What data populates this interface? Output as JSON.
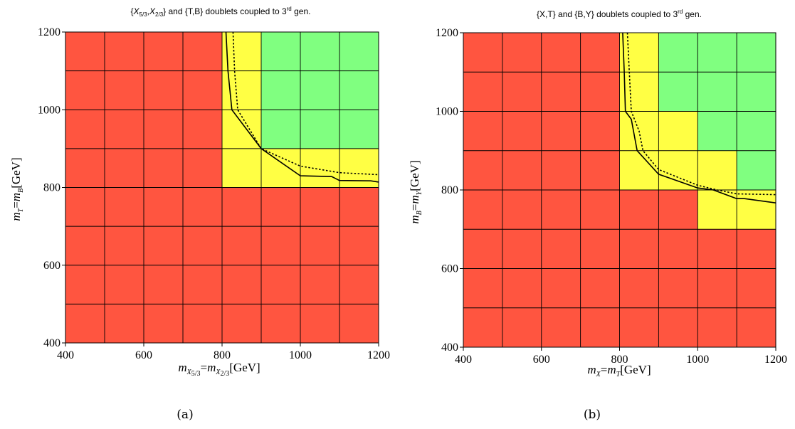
{
  "chart_data": [
    {
      "type": "heatmap",
      "panel": "a",
      "caption": "(a)",
      "title": "{X5/3,X2/3} and {T,B} doublets coupled to 3rd gen.",
      "title_parts": {
        "t1": "{",
        "t2": "X",
        "t3": "5/3",
        "t4": ",",
        "t5": "X",
        "t6": "2/3",
        "t7": "} and {T,B} doublets coupled to 3",
        "t8": "rd",
        "t9": " gen."
      },
      "xlabel": "mX5/3=mX2/3[GeV]",
      "xlabel_parts": {
        "m1": "m",
        "s1": "X",
        "ss1": "5/3",
        "eq": "=",
        "m2": "m",
        "s2": "X",
        "ss2": "2/3",
        "unit": "[GeV]"
      },
      "ylabel": "mT=mB[GeV]",
      "ylabel_parts": {
        "m1": "m",
        "s1": "T",
        "eq": "=",
        "m2": "m",
        "s2": "B",
        "unit": "[GeV]"
      },
      "xlim": [
        400,
        1200
      ],
      "ylim": [
        400,
        1200
      ],
      "xticks": [
        400,
        600,
        800,
        1000,
        1200
      ],
      "yticks": [
        400,
        600,
        800,
        1000,
        1200
      ],
      "x_edges": [
        400,
        500,
        600,
        700,
        800,
        900,
        1000,
        1100,
        1200
      ],
      "y_edges": [
        400,
        500,
        600,
        700,
        800,
        900,
        1000,
        1100,
        1200
      ],
      "colors": {
        "red": "#ff5540",
        "yellow": "#ffff44",
        "green": "#80ff80"
      },
      "cells": [
        [
          "red",
          "red",
          "red",
          "red",
          "red",
          "red",
          "red",
          "red"
        ],
        [
          "red",
          "red",
          "red",
          "red",
          "red",
          "red",
          "red",
          "red"
        ],
        [
          "red",
          "red",
          "red",
          "red",
          "red",
          "red",
          "red",
          "red"
        ],
        [
          "red",
          "red",
          "red",
          "red",
          "red",
          "red",
          "red",
          "red"
        ],
        [
          "red",
          "red",
          "red",
          "red",
          "yellow",
          "yellow",
          "yellow",
          "yellow"
        ],
        [
          "red",
          "red",
          "red",
          "red",
          "yellow",
          "green",
          "green",
          "green"
        ],
        [
          "red",
          "red",
          "red",
          "red",
          "yellow",
          "green",
          "green",
          "green"
        ],
        [
          "red",
          "red",
          "red",
          "red",
          "yellow",
          "green",
          "green",
          "green"
        ]
      ],
      "curves": [
        {
          "style": "solid",
          "points": [
            [
              810,
              1200
            ],
            [
              815,
              1100
            ],
            [
              825,
              1000
            ],
            [
              900,
              900
            ],
            [
              1000,
              830
            ],
            [
              1080,
              828
            ],
            [
              1100,
              818
            ],
            [
              1180,
              817
            ],
            [
              1200,
              814
            ]
          ]
        },
        {
          "style": "dashed",
          "points": [
            [
              828,
              1200
            ],
            [
              832,
              1100
            ],
            [
              840,
              1000
            ],
            [
              900,
              900
            ],
            [
              1000,
              855
            ],
            [
              1100,
              838
            ],
            [
              1200,
              833
            ]
          ]
        }
      ]
    },
    {
      "type": "heatmap",
      "panel": "b",
      "caption": "(b)",
      "title": "{X,T} and {B,Y} doublets coupled to 3rd gen.",
      "title_parts": {
        "t1": "{X,T} and {B,Y} doublets coupled to 3",
        "t8": "rd",
        "t9": " gen."
      },
      "xlabel": "mX=mT[GeV]",
      "xlabel_parts": {
        "m1": "m",
        "s1": "X",
        "eq": "=",
        "m2": "m",
        "s2": "T",
        "unit": "[GeV]"
      },
      "ylabel": "mB=mY[GeV]",
      "ylabel_parts": {
        "m1": "m",
        "s1": "B",
        "eq": "=",
        "m2": "m",
        "s2": "Y",
        "unit": "[GeV]"
      },
      "xlim": [
        400,
        1200
      ],
      "ylim": [
        400,
        1200
      ],
      "xticks": [
        400,
        600,
        800,
        1000,
        1200
      ],
      "yticks": [
        400,
        600,
        800,
        1000,
        1200
      ],
      "x_edges": [
        400,
        500,
        600,
        700,
        800,
        900,
        1000,
        1100,
        1200
      ],
      "y_edges": [
        400,
        500,
        600,
        700,
        800,
        900,
        1000,
        1100,
        1200
      ],
      "colors": {
        "red": "#ff5540",
        "yellow": "#ffff44",
        "green": "#80ff80"
      },
      "cells": [
        [
          "red",
          "red",
          "red",
          "red",
          "red",
          "red",
          "red",
          "red"
        ],
        [
          "red",
          "red",
          "red",
          "red",
          "red",
          "red",
          "red",
          "red"
        ],
        [
          "red",
          "red",
          "red",
          "red",
          "red",
          "red",
          "red",
          "red"
        ],
        [
          "red",
          "red",
          "red",
          "red",
          "red",
          "red",
          "yellow",
          "yellow"
        ],
        [
          "red",
          "red",
          "red",
          "red",
          "yellow",
          "yellow",
          "yellow",
          "green"
        ],
        [
          "red",
          "red",
          "red",
          "red",
          "yellow",
          "yellow",
          "green",
          "green"
        ],
        [
          "red",
          "red",
          "red",
          "red",
          "yellow",
          "green",
          "green",
          "green"
        ],
        [
          "red",
          "red",
          "red",
          "red",
          "yellow",
          "green",
          "green",
          "green"
        ]
      ],
      "curves": [
        {
          "style": "solid",
          "points": [
            [
              808,
              1200
            ],
            [
              812,
              1100
            ],
            [
              815,
              1000
            ],
            [
              830,
              980
            ],
            [
              845,
              900
            ],
            [
              900,
              840
            ],
            [
              1000,
              805
            ],
            [
              1040,
              800
            ],
            [
              1100,
              778
            ],
            [
              1120,
              778
            ],
            [
              1200,
              767
            ]
          ]
        },
        {
          "style": "dashed",
          "points": [
            [
              820,
              1200
            ],
            [
              825,
              1100
            ],
            [
              830,
              1000
            ],
            [
              850,
              950
            ],
            [
              860,
              900
            ],
            [
              900,
              852
            ],
            [
              1000,
              812
            ],
            [
              1050,
              800
            ],
            [
              1100,
              790
            ],
            [
              1200,
              788
            ]
          ]
        }
      ]
    }
  ]
}
